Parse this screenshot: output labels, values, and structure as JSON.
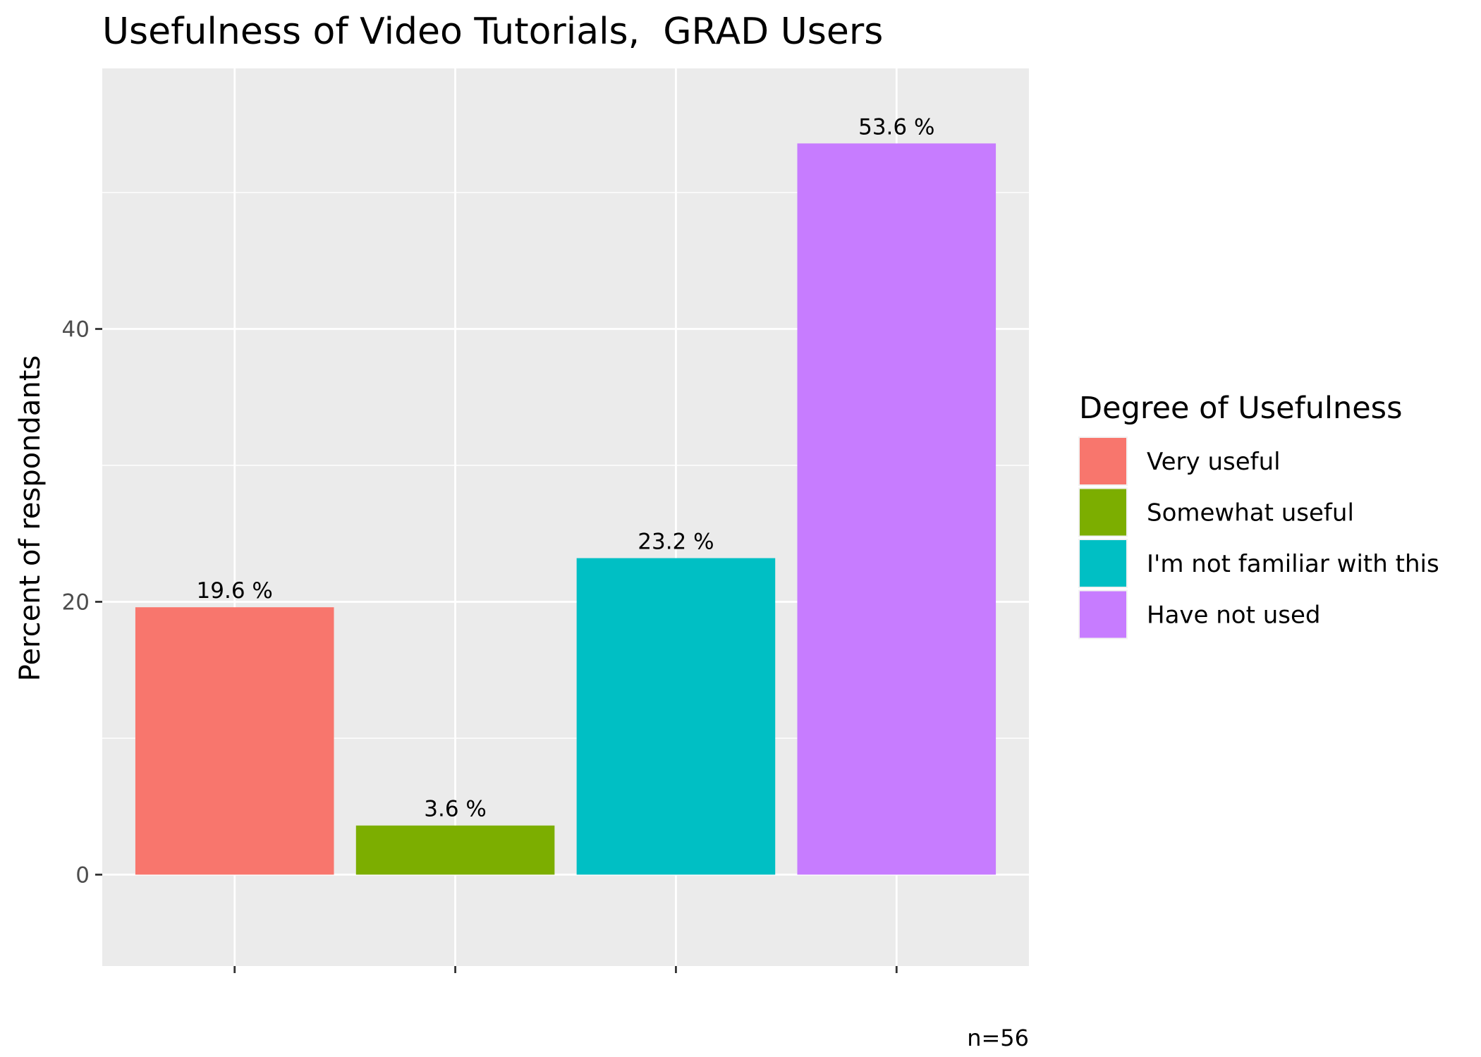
{
  "chart_data": {
    "type": "bar",
    "title": "Usefulness of Video Tutorials,  GRAD Users",
    "xlabel": "",
    "ylabel": "Percent of respondants",
    "ylim": [
      -6.7,
      59.1
    ],
    "yticks": [
      0,
      20,
      40
    ],
    "grid": true,
    "legend": {
      "title": "Degree of Usefulness",
      "placement": "right"
    },
    "categories": [
      "Very useful",
      "Somewhat useful",
      "I'm not familiar with this",
      "Have not used"
    ],
    "values": [
      19.6,
      3.6,
      23.2,
      53.6
    ],
    "data_labels": [
      "19.6 %",
      "3.6 %",
      "23.2 %",
      "53.6 %"
    ],
    "colors": [
      "#F8766D",
      "#7CAE00",
      "#00BFC4",
      "#C77CFF"
    ],
    "caption": "n=56"
  }
}
